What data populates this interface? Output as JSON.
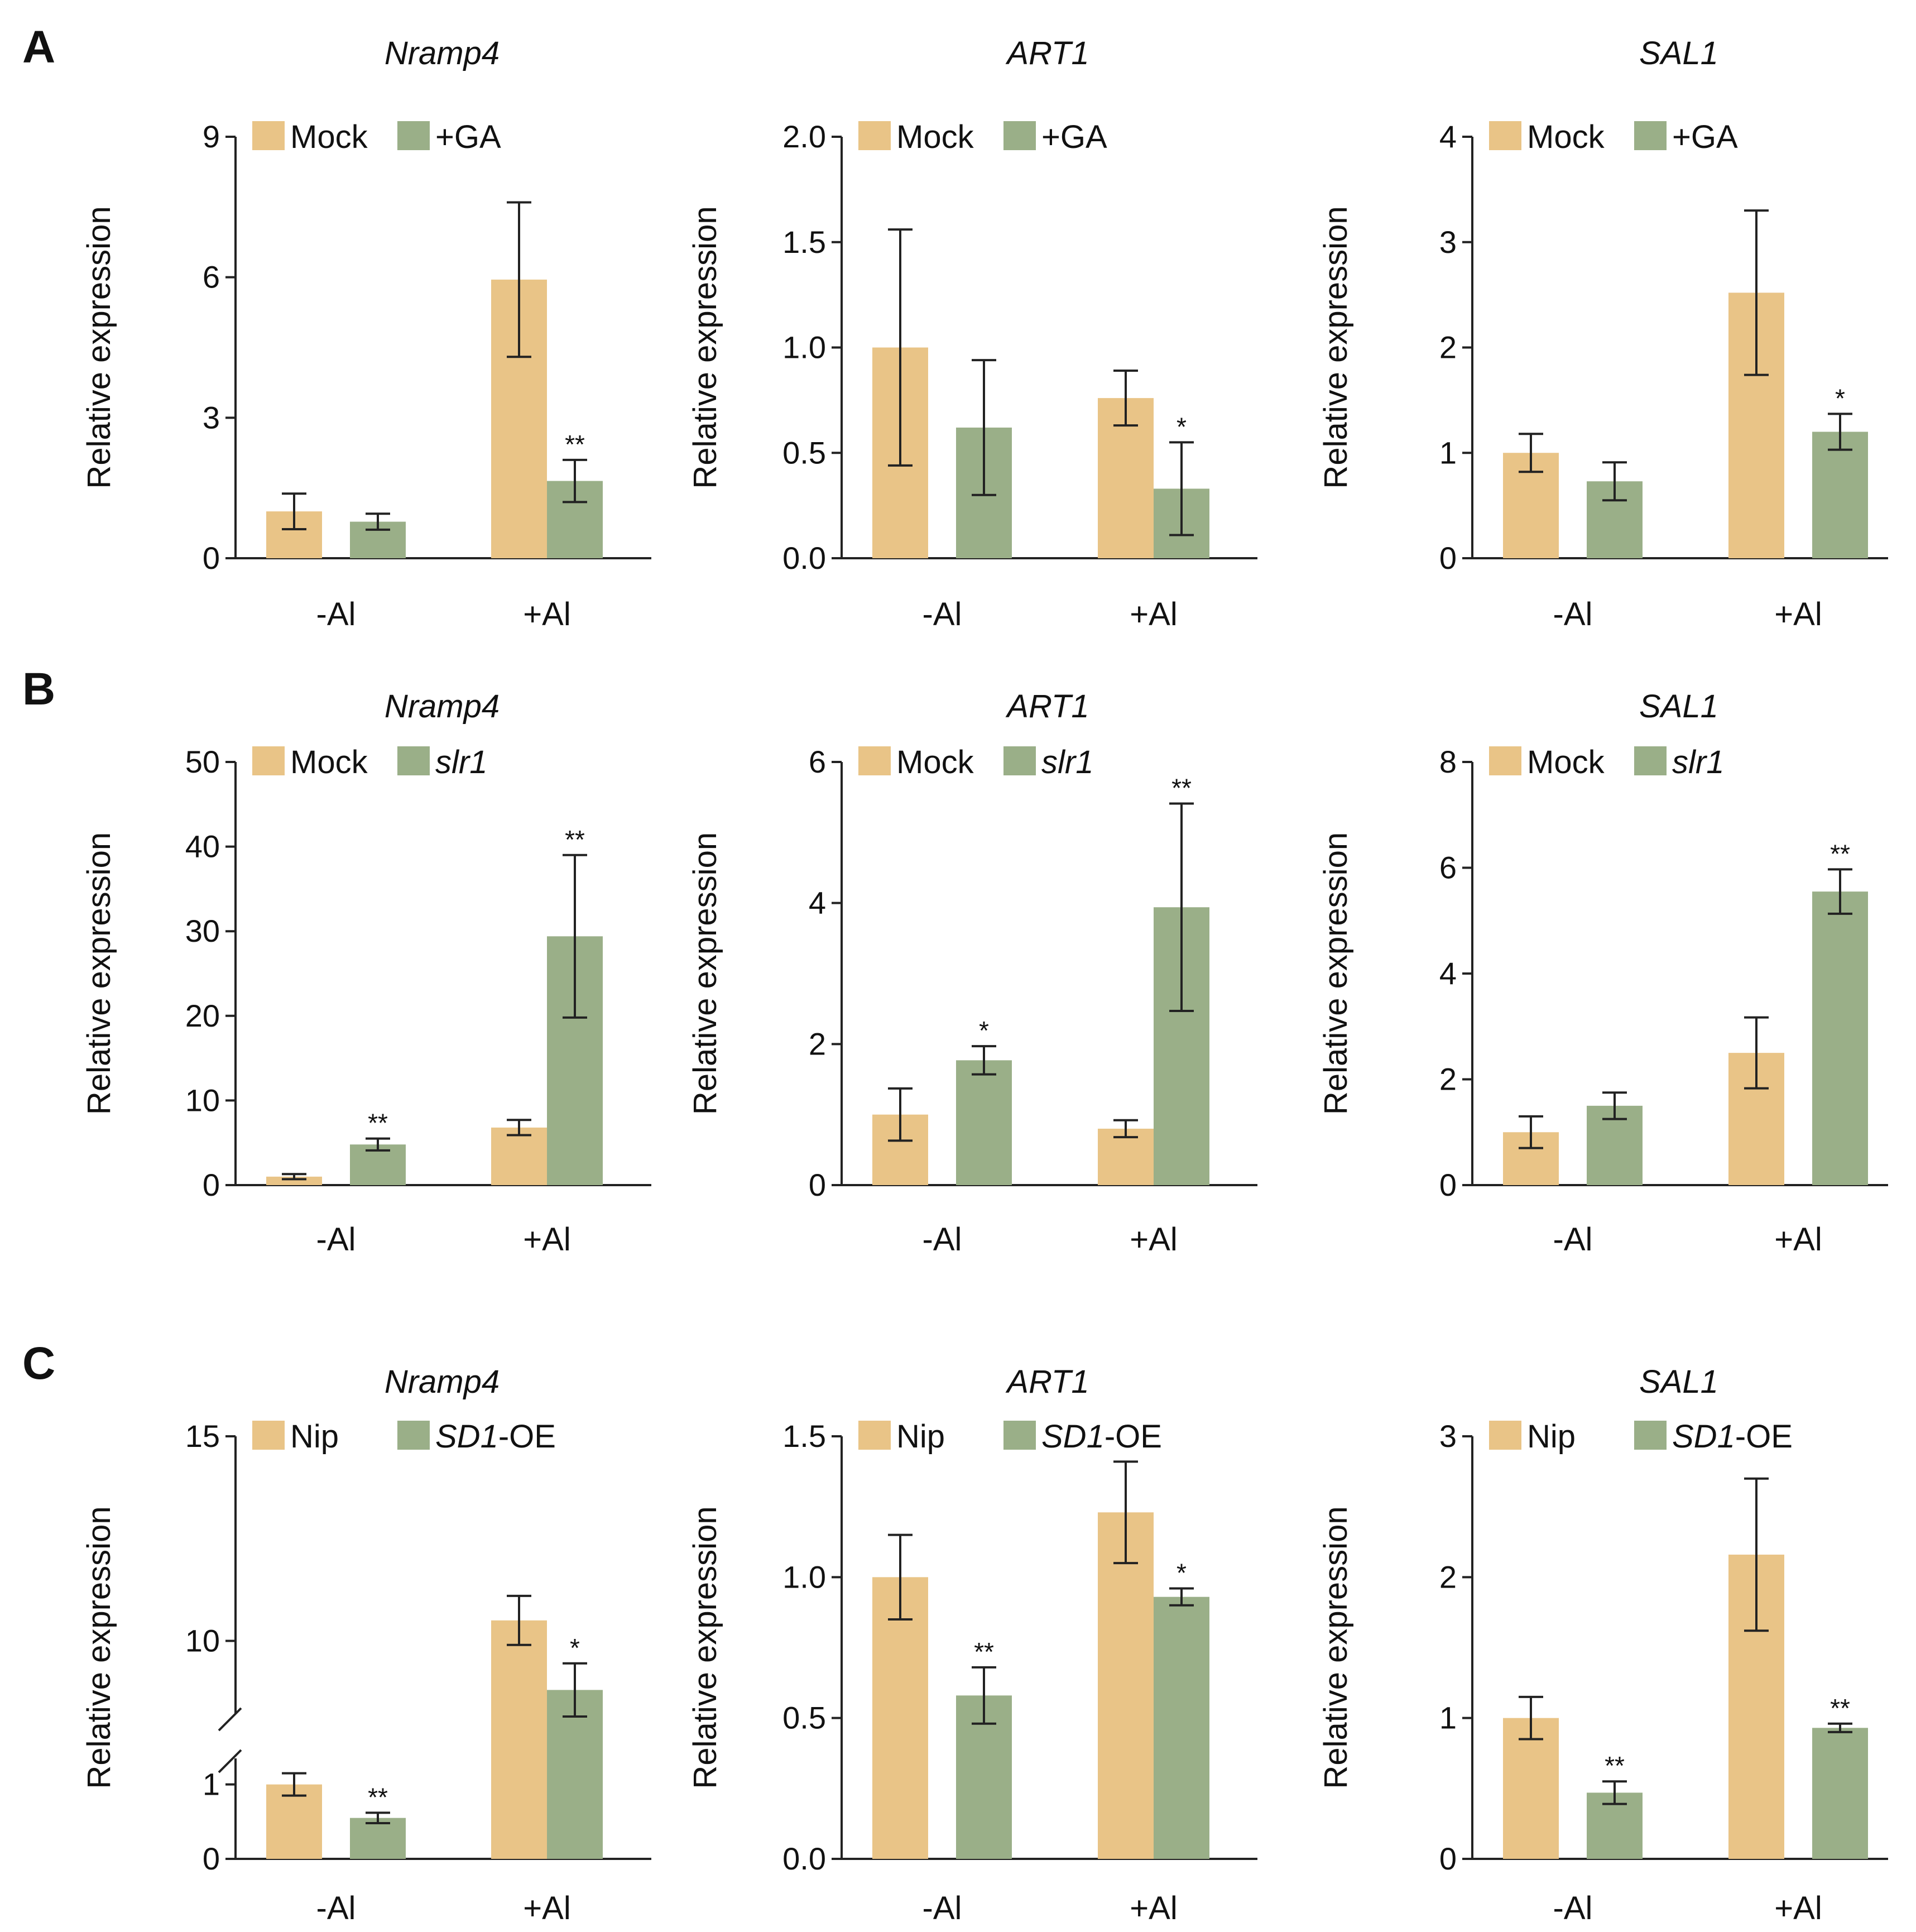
{
  "figure": {
    "panel_letters": [
      "A",
      "B",
      "C"
    ]
  },
  "colors": {
    "mock": "#E9C487",
    "treatment": "#9AAF88"
  },
  "chart_data": [
    {
      "panel": "A",
      "type": "bar",
      "title": "Nramp4",
      "ylabel": "Relative expression",
      "categories": [
        "-Al",
        "+Al"
      ],
      "ylim": [
        0,
        9
      ],
      "yticks": [
        0,
        3,
        6,
        9
      ],
      "legend": [
        {
          "text": "Mock",
          "italic": false
        },
        {
          "text": "+GA",
          "italic": false
        }
      ],
      "series": [
        {
          "name": "Mock",
          "values": [
            1.0,
            5.95
          ],
          "errors": [
            0.38,
            1.65
          ],
          "sig": [
            "",
            ""
          ]
        },
        {
          "name": "+GA",
          "values": [
            0.78,
            1.65
          ],
          "errors": [
            0.17,
            0.45
          ],
          "sig": [
            "",
            "**"
          ]
        }
      ]
    },
    {
      "panel": "A",
      "type": "bar",
      "title": "ART1",
      "ylabel": "Relative expression",
      "categories": [
        "-Al",
        "+Al"
      ],
      "ylim": [
        0,
        2.0
      ],
      "yticks": [
        "0.0",
        "0.5",
        "1.0",
        "1.5",
        "2.0"
      ],
      "legend": [
        {
          "text": "Mock",
          "italic": false
        },
        {
          "text": "+GA",
          "italic": false
        }
      ],
      "series": [
        {
          "name": "Mock",
          "values": [
            1.0,
            0.76
          ],
          "errors": [
            0.56,
            0.13
          ],
          "sig": [
            "",
            ""
          ]
        },
        {
          "name": "+GA",
          "values": [
            0.62,
            0.33
          ],
          "errors": [
            0.32,
            0.22
          ],
          "sig": [
            "",
            "*"
          ]
        }
      ]
    },
    {
      "panel": "A",
      "type": "bar",
      "title": "SAL1",
      "ylabel": "Relative expression",
      "categories": [
        "-Al",
        "+Al"
      ],
      "ylim": [
        0,
        4
      ],
      "yticks": [
        0,
        1,
        2,
        3,
        4
      ],
      "legend": [
        {
          "text": "Mock",
          "italic": false
        },
        {
          "text": "+GA",
          "italic": false
        }
      ],
      "series": [
        {
          "name": "Mock",
          "values": [
            1.0,
            2.52
          ],
          "errors": [
            0.18,
            0.78
          ],
          "sig": [
            "",
            ""
          ]
        },
        {
          "name": "+GA",
          "values": [
            0.73,
            1.2
          ],
          "errors": [
            0.18,
            0.17
          ],
          "sig": [
            "",
            "*"
          ]
        }
      ]
    },
    {
      "panel": "B",
      "type": "bar",
      "title": "Nramp4",
      "ylabel": "Relative expression",
      "categories": [
        "-Al",
        "+Al"
      ],
      "ylim": [
        0,
        50
      ],
      "yticks": [
        0,
        10,
        20,
        30,
        40,
        50
      ],
      "legend": [
        {
          "text": "Mock",
          "italic": false
        },
        {
          "text": "slr1",
          "italic": true
        }
      ],
      "series": [
        {
          "name": "Mock",
          "values": [
            1.0,
            6.8
          ],
          "errors": [
            0.3,
            0.9
          ],
          "sig": [
            "",
            ""
          ]
        },
        {
          "name": "slr1",
          "values": [
            4.8,
            29.4
          ],
          "errors": [
            0.7,
            9.6
          ],
          "sig": [
            "**",
            "**"
          ]
        }
      ]
    },
    {
      "panel": "B",
      "type": "bar",
      "title": "ART1",
      "ylabel": "Relative expression",
      "categories": [
        "-Al",
        "+Al"
      ],
      "ylim": [
        0,
        6
      ],
      "yticks": [
        0,
        2,
        4,
        6
      ],
      "legend": [
        {
          "text": "Mock",
          "italic": false
        },
        {
          "text": "slr1",
          "italic": true
        }
      ],
      "series": [
        {
          "name": "Mock",
          "values": [
            1.0,
            0.8
          ],
          "errors": [
            0.37,
            0.12
          ],
          "sig": [
            "",
            ""
          ]
        },
        {
          "name": "slr1",
          "values": [
            1.77,
            3.94
          ],
          "errors": [
            0.2,
            1.47
          ],
          "sig": [
            "*",
            "**"
          ]
        }
      ]
    },
    {
      "panel": "B",
      "type": "bar",
      "title": "SAL1",
      "ylabel": "Relative expression",
      "categories": [
        "-Al",
        "+Al"
      ],
      "ylim": [
        0,
        8
      ],
      "yticks": [
        0,
        2,
        4,
        6,
        8
      ],
      "legend": [
        {
          "text": "Mock",
          "italic": false
        },
        {
          "text": "slr1",
          "italic": true
        }
      ],
      "series": [
        {
          "name": "Mock",
          "values": [
            1.0,
            2.5
          ],
          "errors": [
            0.3,
            0.67
          ],
          "sig": [
            "",
            ""
          ]
        },
        {
          "name": "slr1",
          "values": [
            1.5,
            5.55
          ],
          "errors": [
            0.25,
            0.42
          ],
          "sig": [
            "",
            "**"
          ]
        }
      ]
    },
    {
      "panel": "C",
      "type": "bar",
      "title": "Nramp4",
      "ylabel": "Relative expression",
      "categories": [
        "-Al",
        "+Al"
      ],
      "ylim": [
        0,
        15
      ],
      "yticks": [
        0,
        1,
        10,
        15
      ],
      "axis_break": {
        "from": 1.5,
        "to": 7.4
      },
      "legend": [
        {
          "text": "Nip",
          "italic": false
        },
        {
          "text": "SD1",
          "italic": true,
          "suffix": "-OE"
        }
      ],
      "series": [
        {
          "name": "Nip",
          "values": [
            1.0,
            10.5
          ],
          "errors": [
            0.15,
            0.6
          ],
          "sig": [
            "",
            ""
          ]
        },
        {
          "name": "SD1-OE",
          "values": [
            0.55,
            8.8
          ],
          "errors": [
            0.07,
            0.65
          ],
          "sig": [
            "**",
            "*"
          ]
        }
      ]
    },
    {
      "panel": "C",
      "type": "bar",
      "title": "ART1",
      "ylabel": "Relative expression",
      "categories": [
        "-Al",
        "+Al"
      ],
      "ylim": [
        0,
        1.5
      ],
      "yticks": [
        "0.0",
        "0.5",
        "1.0",
        "1.5"
      ],
      "legend": [
        {
          "text": "Nip",
          "italic": false
        },
        {
          "text": "SD1",
          "italic": true,
          "suffix": "-OE"
        }
      ],
      "series": [
        {
          "name": "Nip",
          "values": [
            1.0,
            1.23
          ],
          "errors": [
            0.15,
            0.18
          ],
          "sig": [
            "",
            ""
          ]
        },
        {
          "name": "SD1-OE",
          "values": [
            0.58,
            0.93
          ],
          "errors": [
            0.1,
            0.03
          ],
          "sig": [
            "**",
            "*"
          ]
        }
      ]
    },
    {
      "panel": "C",
      "type": "bar",
      "title": "SAL1",
      "ylabel": "Relative expression",
      "categories": [
        "-Al",
        "+Al"
      ],
      "ylim": [
        0,
        3
      ],
      "yticks": [
        0,
        1,
        2,
        3
      ],
      "legend": [
        {
          "text": "Nip",
          "italic": false
        },
        {
          "text": "SD1",
          "italic": true,
          "suffix": "-OE"
        }
      ],
      "series": [
        {
          "name": "Nip",
          "values": [
            1.0,
            2.16
          ],
          "errors": [
            0.15,
            0.54
          ],
          "sig": [
            "",
            ""
          ]
        },
        {
          "name": "SD1-OE",
          "values": [
            0.47,
            0.93
          ],
          "errors": [
            0.08,
            0.03
          ],
          "sig": [
            "**",
            "**"
          ]
        }
      ]
    }
  ]
}
